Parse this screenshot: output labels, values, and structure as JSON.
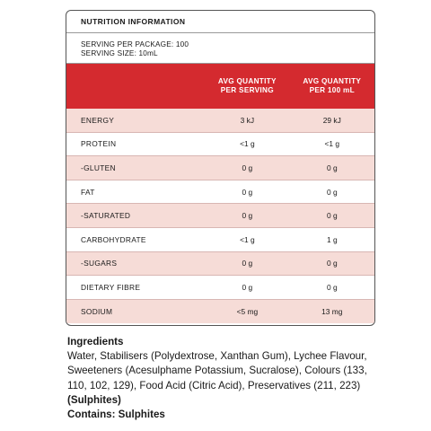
{
  "panel": {
    "title": "NUTRITION INFORMATION",
    "serving_per_package": "SERVING PER PACKAGE: 100",
    "serving_size": "SERVING SIZE: 10mL",
    "col_serving": [
      "AVG QUANTITY",
      "PER SERVING"
    ],
    "col_100ml": [
      "AVG QUANTITY",
      "PER 100 mL"
    ],
    "accent_color": "#d42a2f",
    "shade_color": "#f6dcd7"
  },
  "rows": [
    {
      "name": "ENERGY",
      "per_serving": "3 kJ",
      "per_100": "29 kJ"
    },
    {
      "name": "PROTEIN",
      "per_serving": "<1 g",
      "per_100": "<1 g"
    },
    {
      "name": "-GLUTEN",
      "per_serving": "0 g",
      "per_100": "0 g"
    },
    {
      "name": "FAT",
      "per_serving": "0 g",
      "per_100": "0 g"
    },
    {
      "name": "-SATURATED",
      "per_serving": "0 g",
      "per_100": "0 g"
    },
    {
      "name": "CARBOHYDRATE",
      "per_serving": "<1 g",
      "per_100": "1 g"
    },
    {
      "name": "-SUGARS",
      "per_serving": "0 g",
      "per_100": "0 g"
    },
    {
      "name": "DIETARY FIBRE",
      "per_serving": "0 g",
      "per_100": "0 g"
    },
    {
      "name": "SODIUM",
      "per_serving": "<5 mg",
      "per_100": "13 mg"
    }
  ],
  "ingredients": {
    "title": "Ingredients",
    "text": "Water, Stabilisers (Polydextrose, Xanthan Gum), Lychee Flavour, Sweeteners (Acesulphame Potassium, Sucralose), Colours (133, 110, 102, 129), Food Acid (Citric Acid), Preservatives (211, 223) ",
    "allergen_inline": "(Sulphites)",
    "contains": "Contains: Sulphites"
  }
}
